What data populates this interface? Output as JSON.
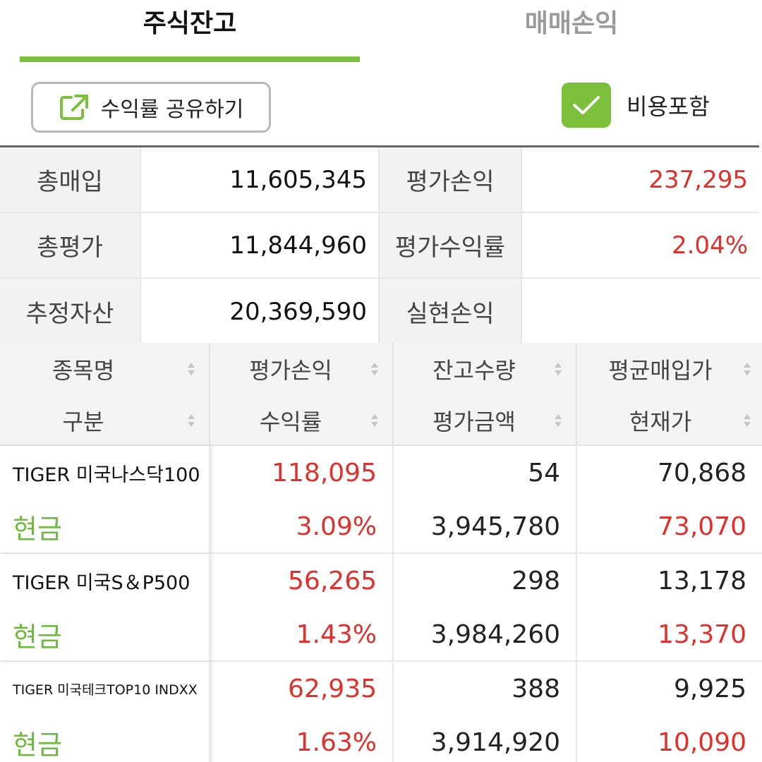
{
  "tabs": {
    "active": "주식잔고",
    "inactive": "매매손익"
  },
  "toolbar": {
    "share_label": "수익률 공유하기",
    "share_icon": "external-share-icon",
    "cost_label": "비용포함",
    "cost_checked": true
  },
  "colors": {
    "accent": "#7bbf3a",
    "profit": "#e0302b",
    "category": "#6cbb3c"
  },
  "summary": {
    "total_purchase_label": "총매입",
    "total_purchase_value": "11,605,345",
    "eval_pnl_label": "평가손익",
    "eval_pnl_value": "237,295",
    "total_eval_label": "총평가",
    "total_eval_value": "11,844,960",
    "eval_return_label": "평가수익률",
    "eval_return_value": "2.04%",
    "est_assets_label": "추정자산",
    "est_assets_value": "20,369,590",
    "realized_pnl_label": "실현손익",
    "realized_pnl_value": ""
  },
  "columns": {
    "c0_top": "종목명",
    "c0_bottom": "구분",
    "c1_top": "평가손익",
    "c1_bottom": "수익률",
    "c2_top": "잔고수량",
    "c2_bottom": "평가금액",
    "c3_top": "평균매입가",
    "c3_bottom": "현재가",
    "sort_icon": "sort-updown-icon"
  },
  "holdings": [
    {
      "name": "TIGER 미국나스닥100",
      "category": "현금",
      "pnl": "118,095",
      "return": "3.09%",
      "qty": "54",
      "eval_amount": "3,945,780",
      "avg_price": "70,868",
      "current_price": "73,070"
    },
    {
      "name": "TIGER 미국S＆P500",
      "category": "현금",
      "pnl": "56,265",
      "return": "1.43%",
      "qty": "298",
      "eval_amount": "3,984,260",
      "avg_price": "13,178",
      "current_price": "13,370"
    },
    {
      "name": "TIGER 미국테크TOP10 INDXX",
      "category": "현금",
      "pnl": "62,935",
      "return": "1.63%",
      "qty": "388",
      "eval_amount": "3,914,920",
      "avg_price": "9,925",
      "current_price": "10,090"
    }
  ]
}
